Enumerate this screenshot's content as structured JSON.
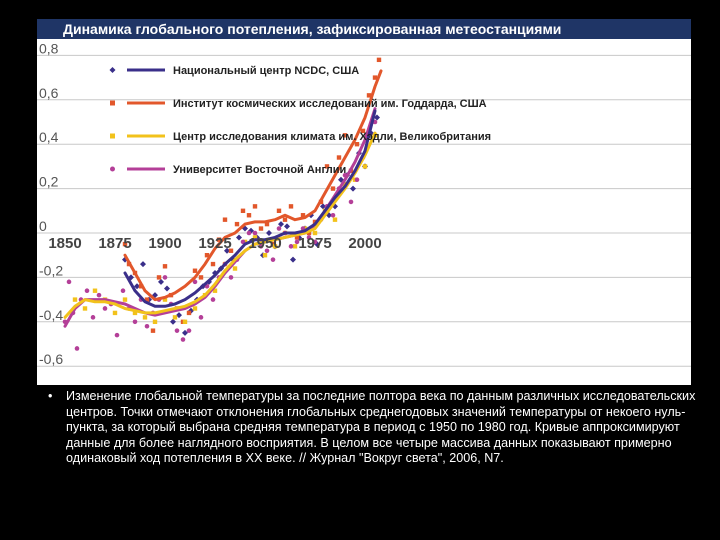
{
  "title": "Динамика глобального потепления, зафиксированная метеостанциями",
  "caption": "Изменение глобальной температуры за последние полтора века по данным различных исследовательских центров. Точки отмечают отклонения глобальных среднегодовых значений температуры от некоего нуль-пункта, за который выбрана средняя температура в период с 1950 по 1980 год. Кривые аппроксимируют данные для более наглядного восприятия. В целом все четыре массива данных показывают примерно одинаковый ход потепления в XX веке. // Журнал \"Вокруг света\", 2006, N7.",
  "bullet": "•",
  "chart_data": {
    "type": "line",
    "xlim": [
      1850,
      2010
    ],
    "ylim": [
      -0.65,
      0.85
    ],
    "x_ticks": [
      1850,
      1875,
      1900,
      1925,
      1950,
      1975,
      2000
    ],
    "x_tick_labels": [
      "1850",
      "1875",
      "1900",
      "1925",
      "1950",
      "1975",
      "2000"
    ],
    "y_ticks": [
      0.8,
      0.6,
      0.4,
      0.2,
      0,
      -0.2,
      -0.4,
      -0.6
    ],
    "y_tick_labels": [
      "0,8",
      "0,6",
      "0,4",
      "0,2",
      "0",
      "-0,2",
      "-0,4",
      "-0,6"
    ],
    "grid": true,
    "legend_position": "top-left",
    "series": [
      {
        "name": "Национальный центр NCDC, США",
        "color": "#3a2f8a",
        "marker": "diamond",
        "curve": [
          [
            1880,
            -0.18
          ],
          [
            1885,
            -0.26
          ],
          [
            1890,
            -0.31
          ],
          [
            1895,
            -0.33
          ],
          [
            1900,
            -0.33
          ],
          [
            1905,
            -0.32
          ],
          [
            1910,
            -0.3
          ],
          [
            1915,
            -0.27
          ],
          [
            1920,
            -0.23
          ],
          [
            1925,
            -0.19
          ],
          [
            1930,
            -0.14
          ],
          [
            1935,
            -0.1
          ],
          [
            1940,
            -0.05
          ],
          [
            1945,
            -0.03
          ],
          [
            1950,
            -0.03
          ],
          [
            1955,
            -0.02
          ],
          [
            1960,
            0
          ],
          [
            1965,
            0
          ],
          [
            1970,
            0.01
          ],
          [
            1975,
            0.04
          ],
          [
            1980,
            0.1
          ],
          [
            1985,
            0.16
          ],
          [
            1990,
            0.21
          ],
          [
            1995,
            0.28
          ],
          [
            2000,
            0.37
          ],
          [
            2005,
            0.55
          ]
        ],
        "points": [
          [
            1880,
            -0.12
          ],
          [
            1883,
            -0.2
          ],
          [
            1886,
            -0.24
          ],
          [
            1889,
            -0.14
          ],
          [
            1892,
            -0.3
          ],
          [
            1895,
            -0.28
          ],
          [
            1898,
            -0.22
          ],
          [
            1901,
            -0.25
          ],
          [
            1904,
            -0.4
          ],
          [
            1907,
            -0.37
          ],
          [
            1910,
            -0.45
          ],
          [
            1913,
            -0.35
          ],
          [
            1916,
            -0.3
          ],
          [
            1919,
            -0.24
          ],
          [
            1922,
            -0.22
          ],
          [
            1925,
            -0.18
          ],
          [
            1928,
            -0.16
          ],
          [
            1931,
            -0.08
          ],
          [
            1934,
            -0.12
          ],
          [
            1937,
            -0.02
          ],
          [
            1940,
            0.02
          ],
          [
            1943,
            0.01
          ],
          [
            1946,
            -0.02
          ],
          [
            1949,
            -0.1
          ],
          [
            1952,
            0.0
          ],
          [
            1955,
            -0.06
          ],
          [
            1958,
            0.04
          ],
          [
            1961,
            0.03
          ],
          [
            1964,
            -0.12
          ],
          [
            1967,
            -0.02
          ],
          [
            1970,
            0.02
          ],
          [
            1973,
            0.08
          ],
          [
            1976,
            -0.05
          ],
          [
            1979,
            0.12
          ],
          [
            1982,
            0.08
          ],
          [
            1985,
            0.12
          ],
          [
            1988,
            0.24
          ],
          [
            1991,
            0.26
          ],
          [
            1994,
            0.2
          ],
          [
            1997,
            0.36
          ],
          [
            2000,
            0.3
          ],
          [
            2003,
            0.45
          ],
          [
            2006,
            0.52
          ]
        ]
      },
      {
        "name": "Институт космических исследований им. Годдарда, США",
        "color": "#e2572b",
        "marker": "square",
        "curve": [
          [
            1880,
            -0.1
          ],
          [
            1885,
            -0.18
          ],
          [
            1890,
            -0.26
          ],
          [
            1895,
            -0.3
          ],
          [
            1900,
            -0.29
          ],
          [
            1905,
            -0.27
          ],
          [
            1910,
            -0.24
          ],
          [
            1915,
            -0.2
          ],
          [
            1920,
            -0.14
          ],
          [
            1925,
            -0.07
          ],
          [
            1930,
            -0.02
          ],
          [
            1935,
            0
          ],
          [
            1940,
            0.04
          ],
          [
            1945,
            0.05
          ],
          [
            1950,
            0.05
          ],
          [
            1955,
            0.06
          ],
          [
            1960,
            0.08
          ],
          [
            1965,
            0.06
          ],
          [
            1970,
            0.07
          ],
          [
            1975,
            0.1
          ],
          [
            1980,
            0.18
          ],
          [
            1985,
            0.26
          ],
          [
            1990,
            0.34
          ],
          [
            1995,
            0.42
          ],
          [
            2000,
            0.52
          ],
          [
            2005,
            0.66
          ],
          [
            2008,
            0.73
          ]
        ],
        "points": [
          [
            1880,
            -0.05
          ],
          [
            1882,
            -0.14
          ],
          [
            1885,
            -0.18
          ],
          [
            1888,
            -0.24
          ],
          [
            1891,
            -0.3
          ],
          [
            1894,
            -0.44
          ],
          [
            1897,
            -0.2
          ],
          [
            1900,
            -0.15
          ],
          [
            1903,
            -0.28
          ],
          [
            1906,
            -0.34
          ],
          [
            1909,
            -0.4
          ],
          [
            1912,
            -0.36
          ],
          [
            1915,
            -0.17
          ],
          [
            1918,
            -0.2
          ],
          [
            1921,
            -0.1
          ],
          [
            1924,
            -0.14
          ],
          [
            1927,
            -0.03
          ],
          [
            1930,
            0.06
          ],
          [
            1933,
            -0.08
          ],
          [
            1936,
            0.04
          ],
          [
            1939,
            0.1
          ],
          [
            1942,
            0.08
          ],
          [
            1945,
            0.12
          ],
          [
            1948,
            0.02
          ],
          [
            1951,
            0.04
          ],
          [
            1954,
            -0.05
          ],
          [
            1957,
            0.1
          ],
          [
            1960,
            0.06
          ],
          [
            1963,
            0.12
          ],
          [
            1966,
            -0.02
          ],
          [
            1969,
            0.08
          ],
          [
            1972,
            0.0
          ],
          [
            1975,
            0.05
          ],
          [
            1978,
            0.14
          ],
          [
            1981,
            0.3
          ],
          [
            1984,
            0.2
          ],
          [
            1987,
            0.34
          ],
          [
            1990,
            0.44
          ],
          [
            1993,
            0.28
          ],
          [
            1996,
            0.4
          ],
          [
            1999,
            0.46
          ],
          [
            2002,
            0.62
          ],
          [
            2005,
            0.7
          ],
          [
            2007,
            0.78
          ]
        ]
      },
      {
        "name": "Центр исследования климата им. Хэдли, Великобритания",
        "color": "#f2c21b",
        "marker": "square",
        "curve": [
          [
            1850,
            -0.38
          ],
          [
            1855,
            -0.33
          ],
          [
            1860,
            -0.3
          ],
          [
            1865,
            -0.31
          ],
          [
            1870,
            -0.31
          ],
          [
            1875,
            -0.32
          ],
          [
            1880,
            -0.34
          ],
          [
            1885,
            -0.35
          ],
          [
            1890,
            -0.36
          ],
          [
            1895,
            -0.36
          ],
          [
            1900,
            -0.35
          ],
          [
            1905,
            -0.34
          ],
          [
            1910,
            -0.33
          ],
          [
            1915,
            -0.31
          ],
          [
            1920,
            -0.28
          ],
          [
            1925,
            -0.23
          ],
          [
            1930,
            -0.17
          ],
          [
            1935,
            -0.12
          ],
          [
            1940,
            -0.08
          ],
          [
            1945,
            -0.05
          ],
          [
            1950,
            -0.04
          ],
          [
            1955,
            -0.03
          ],
          [
            1960,
            -0.02
          ],
          [
            1965,
            -0.01
          ],
          [
            1970,
            0
          ],
          [
            1975,
            0.02
          ],
          [
            1980,
            0.08
          ],
          [
            1985,
            0.14
          ],
          [
            1990,
            0.2
          ],
          [
            1995,
            0.27
          ],
          [
            2000,
            0.35
          ],
          [
            2005,
            0.45
          ]
        ],
        "points": [
          [
            1855,
            -0.3
          ],
          [
            1860,
            -0.34
          ],
          [
            1865,
            -0.26
          ],
          [
            1870,
            -0.3
          ],
          [
            1875,
            -0.36
          ],
          [
            1880,
            -0.3
          ],
          [
            1885,
            -0.36
          ],
          [
            1890,
            -0.38
          ],
          [
            1895,
            -0.4
          ],
          [
            1900,
            -0.3
          ],
          [
            1905,
            -0.38
          ],
          [
            1910,
            -0.4
          ],
          [
            1915,
            -0.34
          ],
          [
            1920,
            -0.28
          ],
          [
            1925,
            -0.26
          ],
          [
            1930,
            -0.14
          ],
          [
            1935,
            -0.16
          ],
          [
            1940,
            -0.04
          ],
          [
            1945,
            -0.02
          ],
          [
            1950,
            -0.1
          ],
          [
            1955,
            -0.06
          ],
          [
            1960,
            0.0
          ],
          [
            1965,
            -0.06
          ],
          [
            1970,
            0.02
          ],
          [
            1975,
            0.0
          ],
          [
            1980,
            0.1
          ],
          [
            1985,
            0.06
          ],
          [
            1990,
            0.22
          ],
          [
            1995,
            0.24
          ],
          [
            2000,
            0.3
          ],
          [
            2005,
            0.44
          ]
        ]
      },
      {
        "name": "Университет Восточной Англии",
        "color": "#b43f98",
        "marker": "dot",
        "curve": [
          [
            1850,
            -0.42
          ],
          [
            1855,
            -0.34
          ],
          [
            1860,
            -0.3
          ],
          [
            1865,
            -0.3
          ],
          [
            1870,
            -0.3
          ],
          [
            1875,
            -0.31
          ],
          [
            1880,
            -0.32
          ],
          [
            1885,
            -0.34
          ],
          [
            1890,
            -0.36
          ],
          [
            1895,
            -0.37
          ],
          [
            1900,
            -0.36
          ],
          [
            1905,
            -0.35
          ],
          [
            1910,
            -0.34
          ],
          [
            1915,
            -0.32
          ],
          [
            1920,
            -0.29
          ],
          [
            1925,
            -0.24
          ],
          [
            1930,
            -0.18
          ],
          [
            1935,
            -0.13
          ],
          [
            1940,
            -0.08
          ],
          [
            1945,
            -0.05
          ],
          [
            1950,
            -0.04
          ],
          [
            1955,
            -0.03
          ],
          [
            1960,
            -0.02
          ],
          [
            1965,
            -0.01
          ],
          [
            1970,
            0
          ],
          [
            1975,
            0.03
          ],
          [
            1980,
            0.1
          ],
          [
            1985,
            0.17
          ],
          [
            1990,
            0.24
          ],
          [
            1995,
            0.32
          ],
          [
            2000,
            0.42
          ],
          [
            2005,
            0.56
          ]
        ],
        "points": [
          [
            1850,
            -0.4
          ],
          [
            1852,
            -0.22
          ],
          [
            1854,
            -0.36
          ],
          [
            1856,
            -0.52
          ],
          [
            1858,
            -0.3
          ],
          [
            1861,
            -0.26
          ],
          [
            1864,
            -0.38
          ],
          [
            1867,
            -0.28
          ],
          [
            1870,
            -0.34
          ],
          [
            1873,
            -0.32
          ],
          [
            1876,
            -0.46
          ],
          [
            1879,
            -0.26
          ],
          [
            1882,
            -0.34
          ],
          [
            1885,
            -0.4
          ],
          [
            1888,
            -0.3
          ],
          [
            1891,
            -0.42
          ],
          [
            1894,
            -0.36
          ],
          [
            1897,
            -0.3
          ],
          [
            1900,
            -0.2
          ],
          [
            1903,
            -0.32
          ],
          [
            1906,
            -0.44
          ],
          [
            1909,
            -0.48
          ],
          [
            1912,
            -0.44
          ],
          [
            1915,
            -0.22
          ],
          [
            1918,
            -0.38
          ],
          [
            1921,
            -0.24
          ],
          [
            1924,
            -0.3
          ],
          [
            1927,
            -0.2
          ],
          [
            1930,
            -0.14
          ],
          [
            1933,
            -0.2
          ],
          [
            1936,
            -0.12
          ],
          [
            1939,
            -0.04
          ],
          [
            1942,
            0.0
          ],
          [
            1945,
            0.0
          ],
          [
            1948,
            -0.06
          ],
          [
            1951,
            -0.08
          ],
          [
            1954,
            -0.12
          ],
          [
            1957,
            0.02
          ],
          [
            1960,
            0.0
          ],
          [
            1963,
            -0.06
          ],
          [
            1966,
            -0.04
          ],
          [
            1969,
            0.02
          ],
          [
            1972,
            -0.02
          ],
          [
            1975,
            -0.04
          ],
          [
            1978,
            0.06
          ],
          [
            1981,
            0.12
          ],
          [
            1984,
            0.08
          ],
          [
            1987,
            0.2
          ],
          [
            1990,
            0.26
          ],
          [
            1993,
            0.14
          ],
          [
            1996,
            0.24
          ],
          [
            1999,
            0.34
          ],
          [
            2002,
            0.46
          ],
          [
            2005,
            0.5
          ]
        ]
      }
    ]
  }
}
